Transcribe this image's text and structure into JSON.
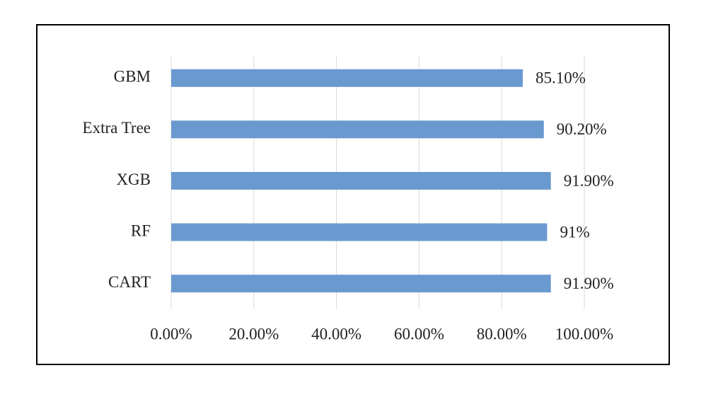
{
  "chart_data": {
    "type": "bar",
    "orientation": "horizontal",
    "categories": [
      "GBM",
      "Extra Tree",
      "XGB",
      "RF",
      "CART"
    ],
    "values": [
      85.1,
      90.2,
      91.9,
      91,
      91.9
    ],
    "value_labels": [
      "85.10%",
      "90.20%",
      "91.90%",
      "91%",
      "91.90%"
    ],
    "color": "#6a99d0",
    "xlim": [
      0,
      100
    ],
    "xticks": [
      {
        "value": 0,
        "label": "0.00%"
      },
      {
        "value": 20,
        "label": "20.00%"
      },
      {
        "value": 40,
        "label": "40.00%"
      },
      {
        "value": 60,
        "label": "60.00%"
      },
      {
        "value": 80,
        "label": "80.00%"
      },
      {
        "value": 100,
        "label": "100.00%"
      }
    ],
    "grid": true
  }
}
